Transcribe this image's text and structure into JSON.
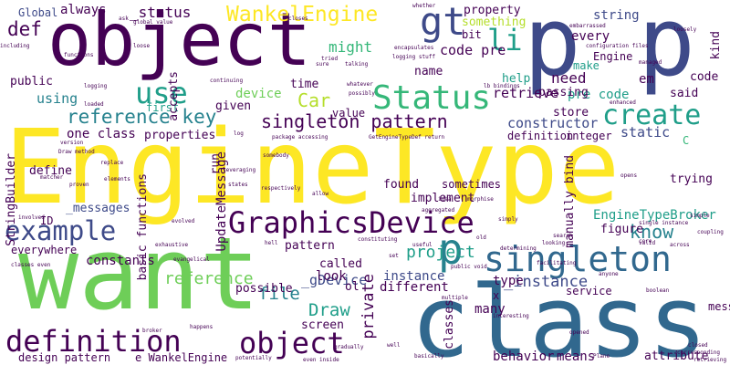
{
  "palette": {
    "background": "#ffffff",
    "dark_purple": "#440154",
    "indigo": "#3e4a89",
    "blue": "#31688e",
    "teal": "#26828e",
    "green_teal": "#1f9e89",
    "green": "#35b779",
    "light_green": "#6ece58",
    "lime": "#b5de2b",
    "yellow": "#fde725"
  },
  "words": {
    "engine_type": "EngineType",
    "object_top": "object",
    "pp": "p p",
    "want": "want",
    "class_big": "class",
    "status": "Status",
    "graphics_device": "GraphicsDevice",
    "singleton": "singleton",
    "example": "example",
    "definition": "definition",
    "object_bottom": "object",
    "create": "create",
    "reference_key": "reference key",
    "use": "use",
    "gt": "gt",
    "li": "li",
    "p_mid": "p",
    "wankel_engine": "WankelEngine",
    "singleton_pattern": "singleton pattern",
    "car": "Car",
    "know": "know",
    "def": "def",
    "might": "might",
    "draw": "Draw",
    "file": "file",
    "private": "private",
    "reference": "reference",
    "project": "project",
    "instance_under": "_instance",
    "engine_type_broker": "EngineTypeBroker",
    "constructor": "constructor",
    "retrieve": "retrieve",
    "pre_code": "pre code",
    "code_pre": "code pre",
    "device": "device",
    "gdevice": "_gDevice",
    "messages": "_messages",
    "status_under": "_status",
    "always": "always",
    "global": "Global",
    "string": "string",
    "property": "property",
    "something": "something",
    "every": "every",
    "engine": "Engine",
    "make": "make",
    "help": "help",
    "em": "em",
    "need": "need",
    "bit": "bit",
    "using": "using",
    "public": "public",
    "name": "name",
    "time": "time",
    "value": "value",
    "said": "said",
    "code": "code",
    "static": "static",
    "c_letter": "C",
    "store": "store",
    "integer": "integer",
    "passing": "passing",
    "first": "first",
    "given": "given",
    "one_class": "one class",
    "properties": "properties",
    "define": "define",
    "id": "ID",
    "everywhere": "everywhere",
    "constants": "constants",
    "called": "called",
    "look": "look",
    "found": "found",
    "implement": "implement",
    "definition_small": "definition",
    "trying": "trying",
    "figure": "figure",
    "service": "service",
    "type": "type",
    "instance": "instance",
    "different": "different",
    "put": "put",
    "possible": "possible",
    "screen": "screen",
    "many": "many",
    "x": "x",
    "message": "message",
    "behavior": "behavior",
    "means": "means",
    "attribute": "attribute",
    "design_pattern": "design pattern",
    "e_wankel_engine": "e WankelEngine",
    "pattern": "pattern",
    "ol": "ol",
    "classes": "classes",
    "sometimes": "sometimes",
    "accepts": "accepts",
    "run": "run",
    "update_message": "UpdateMessage",
    "basic_functions": "basic functions",
    "string_builder": "StringBuilder",
    "manually_bind": "manually bind",
    "kind": "kind",
    "global_value": "global value",
    "configuration_files": "configuration files",
    "logging_stuff": "logging stuff",
    "get_engine_type_def": "GetEngineTypeDef return",
    "package_accessing": "package accessing",
    "single_instance": "single instance",
    "public_void": "public void",
    "classes_even": "classes even",
    "even_inside": "even inside",
    "draw_method": "Draw method",
    "including": "including",
    "functions": "functions",
    "logging": "logging",
    "loaded": "loaded",
    "version": "version",
    "replace": "replace",
    "matcher": "matcher",
    "proven": "proven",
    "elements": "elements",
    "involved": "involved",
    "evolved": "evolved",
    "exhaustive": "exhaustive",
    "evangelical": "evangelical",
    "happens": "happens",
    "broker": "broker",
    "basically": "basically",
    "gradually": "gradually",
    "potentially": "potentially",
    "opened": "opened",
    "plane": "Plane",
    "closed": "closed",
    "corresponding": "corresponding",
    "retrieving": "retrieving",
    "coupling": "coupling",
    "across": "across",
    "valid": "valid",
    "core": "core",
    "simple": "simple",
    "opens": "opens",
    "enhanced": "enhanced",
    "managed": "managed",
    "loosely": "loosely",
    "embarrassed": "embarrassed",
    "leveraging": "leveraging",
    "states": "states",
    "respectively": "respectively",
    "somebody": "somebody",
    "allow": "allow",
    "whatever": "whatever",
    "possibly": "possibly",
    "tried": "tried",
    "talking": "talking",
    "whether": "whether",
    "closes": "closes",
    "encapsulates": "encapsulates",
    "looking": "looking",
    "search": "search",
    "determining": "determining",
    "useful": "useful",
    "multiple": "multiple",
    "interesting": "interesting",
    "facilitating": "facilitating",
    "anyone": "anyone",
    "boolean": "boolean",
    "continuing": "continuing",
    "idea": "idea",
    "simply": "simply",
    "ask": "ask",
    "loose": "loose",
    "log": "log",
    "hell": "hell",
    "well": "well",
    "sure": "sure",
    "set": "set",
    "constituting": "constituting",
    "aggregated": "aggregated",
    "morphise": "morphise",
    "old": "old",
    "bindings": "lb bindings"
  }
}
